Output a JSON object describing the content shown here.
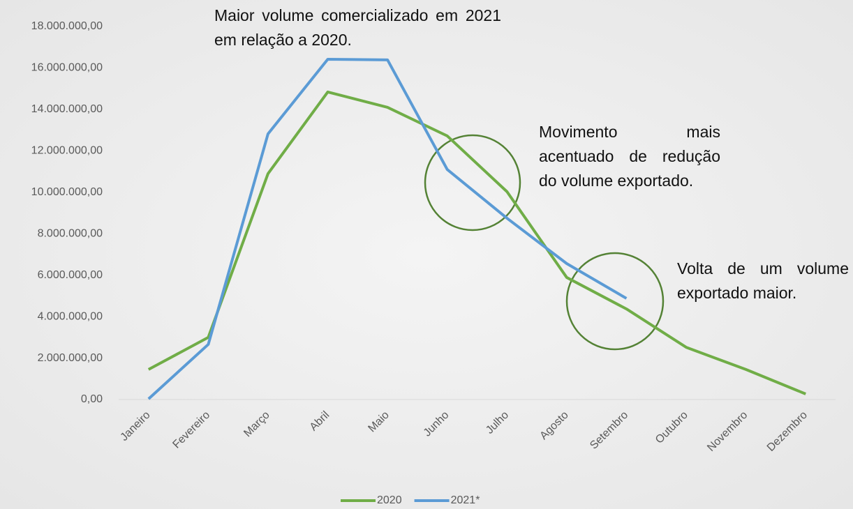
{
  "chart_data": {
    "type": "line",
    "categories": [
      "Janeiro",
      "Fevereiro",
      "Março",
      "Abril",
      "Maio",
      "Junho",
      "Julho",
      "Agosto",
      "Setembro",
      "Outubro",
      "Novembro",
      "Dezembro"
    ],
    "series": [
      {
        "name": "2020",
        "color": "#70ad47",
        "values": [
          1450000,
          3000000,
          10900000,
          14840000,
          14100000,
          12720000,
          10030000,
          5890000,
          4370000,
          2520000,
          1450000,
          270000
        ]
      },
      {
        "name": "2021*",
        "color": "#5b9bd5",
        "values": [
          30000,
          2660000,
          12820000,
          16420000,
          16390000,
          11100000,
          8750000,
          6560000,
          4880000,
          null,
          null,
          null
        ]
      }
    ],
    "ylim": [
      0,
      18000000
    ],
    "yticks": [
      {
        "value": 0,
        "label": "0,00"
      },
      {
        "value": 2000000,
        "label": "2.000.000,00"
      },
      {
        "value": 4000000,
        "label": "4.000.000,00"
      },
      {
        "value": 6000000,
        "label": "6.000.000,00"
      },
      {
        "value": 8000000,
        "label": "8.000.000,00"
      },
      {
        "value": 10000000,
        "label": "10.000.000,00"
      },
      {
        "value": 12000000,
        "label": "12.000.000,00"
      },
      {
        "value": 14000000,
        "label": "14.000.000,00"
      },
      {
        "value": 16000000,
        "label": "16.000.000,00"
      },
      {
        "value": 18000000,
        "label": "18.000.000,00"
      }
    ],
    "grid": false,
    "legend": "bottom",
    "annotations": [
      "Maior volume comercializado em 2021 em relação a 2020.",
      "Movimento mais acentuado de redução do volume exportado.",
      "Volta de um volume exportado maior."
    ]
  }
}
